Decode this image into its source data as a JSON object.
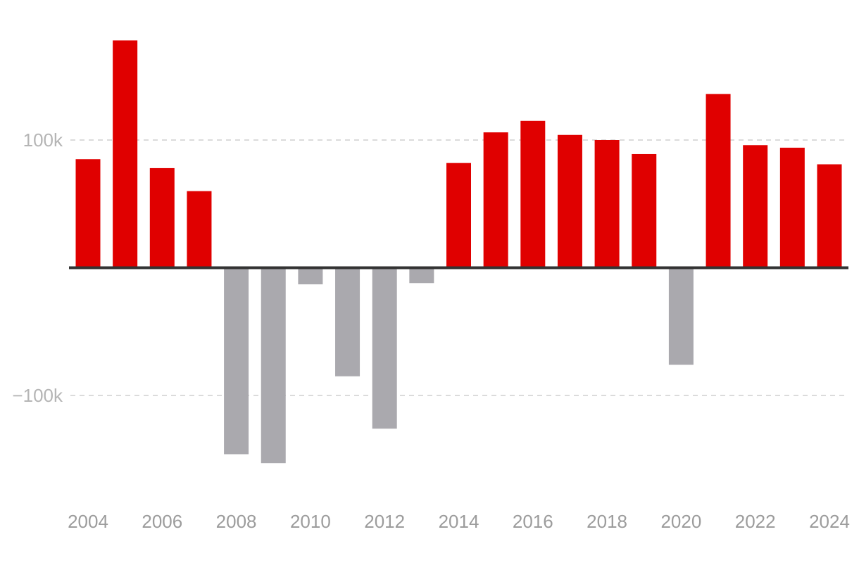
{
  "chart_data": {
    "type": "bar",
    "title": "",
    "xlabel": "",
    "ylabel": "",
    "categories": [
      "2004",
      "2005",
      "2006",
      "2007",
      "2008",
      "2009",
      "2010",
      "2011",
      "2012",
      "2013",
      "2014",
      "2015",
      "2016",
      "2017",
      "2018",
      "2019",
      "2020",
      "2021",
      "2022",
      "2023",
      "2024"
    ],
    "values": [
      85000,
      178000,
      78000,
      60000,
      -146000,
      -153000,
      -13000,
      -85000,
      -126000,
      -12000,
      82000,
      106000,
      115000,
      104000,
      100000,
      89000,
      -76000,
      136000,
      96000,
      94000,
      81000
    ],
    "ylim": [
      -180000,
      200000
    ],
    "x_tick_labels": [
      "2004",
      "2006",
      "2008",
      "2010",
      "2012",
      "2014",
      "2016",
      "2018",
      "2020",
      "2022",
      "2024"
    ],
    "y_ticks": [
      {
        "value": 100000,
        "label": "100k"
      },
      {
        "value": -100000,
        "label": "−100k"
      }
    ],
    "grid": true,
    "colors": {
      "positive": "#e00000",
      "negative": "#aaa9ae",
      "zero_line": "#333333"
    }
  }
}
